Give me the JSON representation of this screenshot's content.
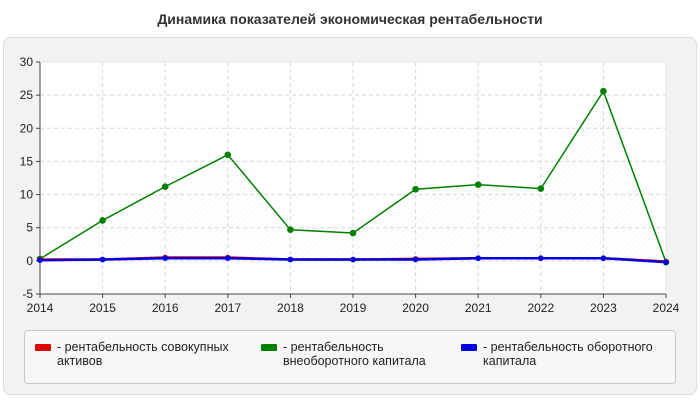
{
  "chart_data": {
    "type": "line",
    "title": "Динамика показателей экономическая рентабельности",
    "x": [
      "2014",
      "2015",
      "2016",
      "2017",
      "2018",
      "2019",
      "2020",
      "2021",
      "2022",
      "2023",
      "2024"
    ],
    "ylim": [
      -5,
      30
    ],
    "yticks": [
      "-5",
      "0",
      "5",
      "10",
      "15",
      "20",
      "25",
      "30"
    ],
    "grid": true,
    "legend_position": "bottom",
    "series": [
      {
        "name": "- рентабельность совокупных активов",
        "color": "#e00000",
        "values": [
          0.2,
          0.2,
          0.5,
          0.5,
          0.2,
          0.2,
          0.3,
          0.4,
          0.4,
          0.4,
          -0.1
        ]
      },
      {
        "name": "- рентабельность внеоборотного капитала",
        "color": "#008000",
        "values": [
          0.3,
          6.1,
          11.2,
          16.0,
          4.7,
          4.2,
          10.8,
          11.5,
          10.9,
          25.6,
          -0.2
        ]
      },
      {
        "name": "- рентабельность оборотного капитала",
        "color": "#0000e0",
        "values": [
          0.1,
          0.2,
          0.4,
          0.4,
          0.2,
          0.2,
          0.2,
          0.4,
          0.4,
          0.4,
          -0.2
        ]
      }
    ]
  }
}
